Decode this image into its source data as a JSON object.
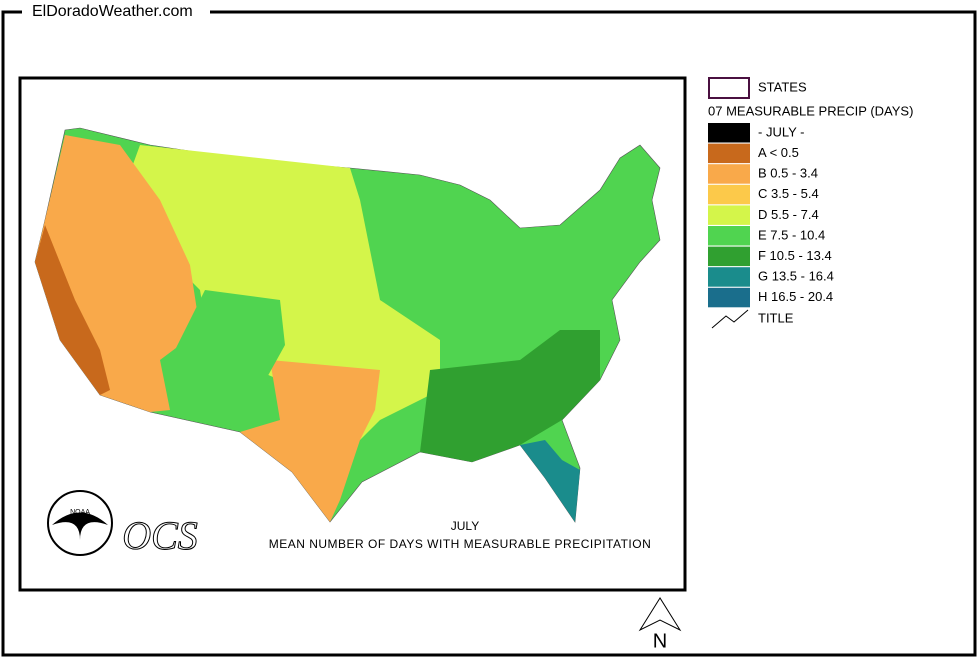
{
  "header": {
    "site": "ElDoradoWeather.com"
  },
  "legend": {
    "states": "STATES",
    "title": "07 MEASURABLE PRECIP (DAYS)",
    "items": [
      {
        "label": "- JULY -",
        "color": "#000000"
      },
      {
        "label": "A < 0.5",
        "color": "#c8691c"
      },
      {
        "label": "B 0.5 - 3.4",
        "color": "#f9a94a"
      },
      {
        "label": "C 3.5 - 5.4",
        "color": "#fcc94a"
      },
      {
        "label": "D 5.5 - 7.4",
        "color": "#d4f54a"
      },
      {
        "label": "E 7.5 - 10.4",
        "color": "#50d450"
      },
      {
        "label": "F 10.5 - 13.4",
        "color": "#30a030"
      },
      {
        "label": "G 13.5 - 16.4",
        "color": "#1a8c8c"
      },
      {
        "label": "H 16.5 - 20.4",
        "color": "#1a6e8c"
      }
    ],
    "line": "TITLE"
  },
  "map": {
    "month": "JULY",
    "caption": "MEAN NUMBER OF DAYS WITH MEASURABLE PRECIPITATION",
    "agency": "OCS",
    "logo": "NOAA",
    "north": "N"
  }
}
